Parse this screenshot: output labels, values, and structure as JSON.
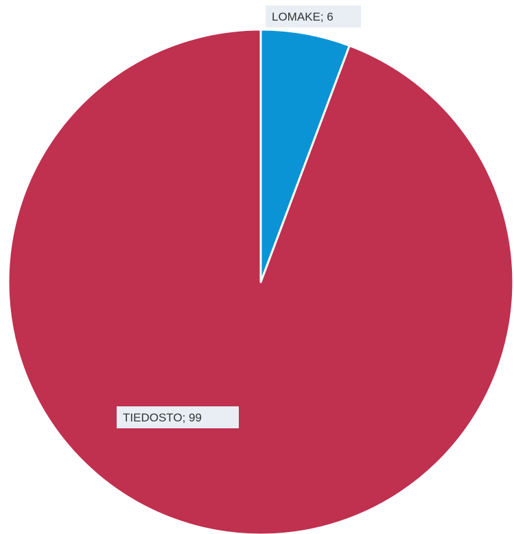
{
  "chart_data": {
    "type": "pie",
    "title": "",
    "slices": [
      {
        "label": "LOMAKE",
        "value": 6,
        "color": "#0a94d6",
        "data_label": "LOMAKE; 6"
      },
      {
        "label": "TIEDOSTO",
        "value": 99,
        "color": "#c0304f",
        "data_label": "TIEDOSTO; 99"
      }
    ],
    "start_angle_deg": 0,
    "direction": "clockwise",
    "legend": "none"
  }
}
